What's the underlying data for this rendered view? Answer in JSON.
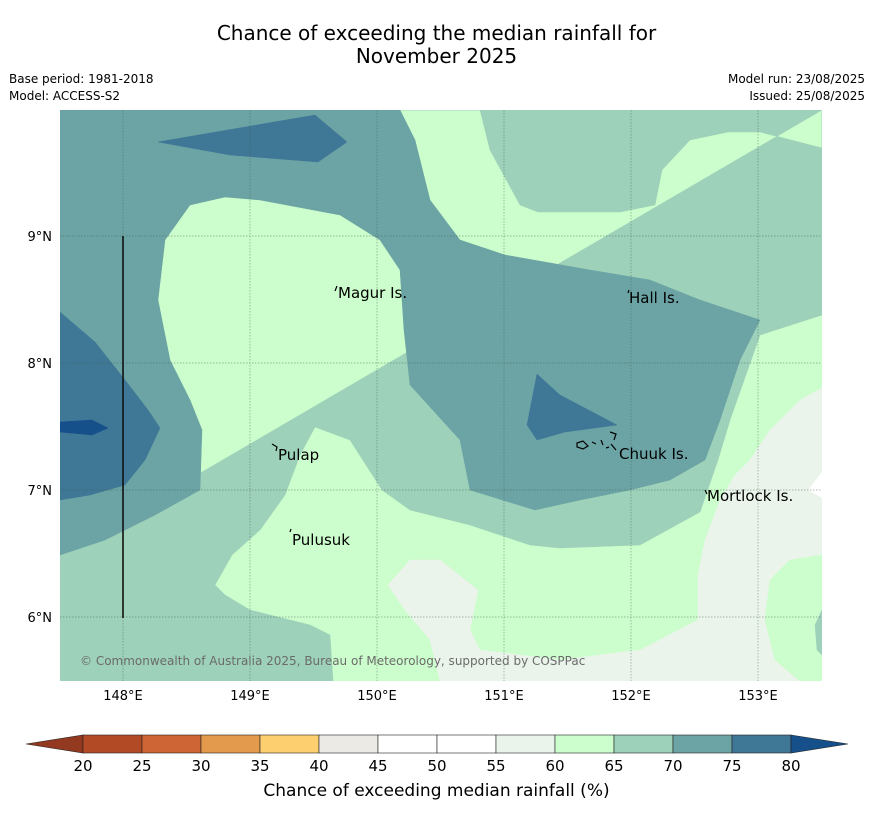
{
  "title_line1": "Chance of exceeding the median rainfall for",
  "title_line2": "November 2025",
  "base_period": "Base period: 1981-2018",
  "model": "Model: ACCESS-S2",
  "model_run": "Model run: 23/08/2025",
  "issued": "Issued: 25/08/2025",
  "copyright": "© Commonwealth of Australia 2025, Bureau of Meteorology, supported by COSPPac",
  "lon_ticks": [
    "148°E",
    "149°E",
    "150°E",
    "151°E",
    "152°E",
    "153°E"
  ],
  "lat_ticks": [
    "9°N",
    "8°N",
    "7°N",
    "6°N"
  ],
  "places": [
    {
      "name": "Magur Is."
    },
    {
      "name": "Hall Is."
    },
    {
      "name": "Pulap"
    },
    {
      "name": "Chuuk Is."
    },
    {
      "name": "Mortlock Is."
    },
    {
      "name": "Pulusuk"
    }
  ],
  "colorbar": {
    "label": "Chance of exceeding median rainfall (%)",
    "ticks": [
      "20",
      "25",
      "30",
      "35",
      "40",
      "45",
      "50",
      "55",
      "60",
      "65",
      "70",
      "75",
      "80"
    ],
    "colors": [
      "#b24a26",
      "#cd6634",
      "#e39a4c",
      "#fdcf6e",
      "#ebeae4",
      "#ffffff",
      "#ffffff",
      "#eaf4ea",
      "#ccfdcc",
      "#9dd1b9",
      "#6ca4a5",
      "#3f7796"
    ],
    "low_extend_color": "#93391f",
    "high_extend_color": "#16508a"
  },
  "fill_colors": {
    "c60_65": "#ccfdcc",
    "c55_60": "#eaf4ea",
    "c65_70": "#9dd1b9",
    "c70_75": "#6ca4a5",
    "c75_80": "#3f7796",
    "c80_plus": "#16508a"
  }
}
